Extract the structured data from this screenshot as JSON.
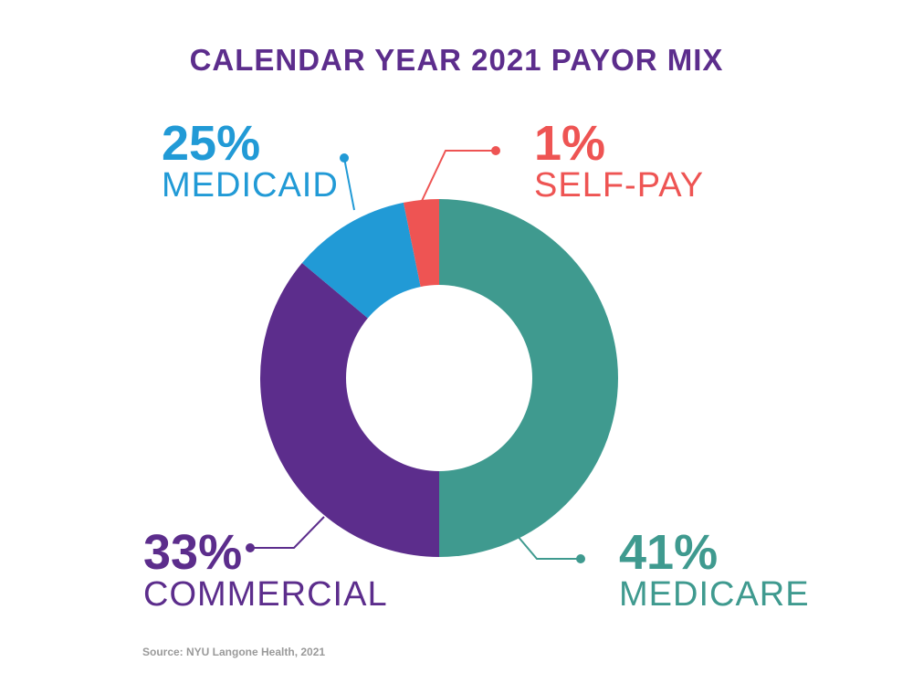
{
  "colors": {
    "title": "#5c2d8c",
    "medicare": "#3f9a8f",
    "commercial": "#5c2d8c",
    "medicaid": "#219ad6",
    "selfpay": "#ee5453",
    "source": "#9a9a9a"
  },
  "chart_data": {
    "type": "pie",
    "title": "CALENDAR YEAR 2021 PAYOR MIX",
    "style": "donut",
    "slices": [
      {
        "label": "MEDICARE",
        "value": 41,
        "value_label": "41%",
        "color": "#3f9a8f"
      },
      {
        "label": "COMMERCIAL",
        "value": 33,
        "value_label": "33%",
        "color": "#5c2d8c"
      },
      {
        "label": "MEDICAID",
        "value": 25,
        "value_label": "25%",
        "color": "#219ad6"
      },
      {
        "label": "SELF-PAY",
        "value": 1,
        "value_label": "1%",
        "color": "#ee5453"
      }
    ],
    "source": "Source: NYU Langone Health, 2021"
  }
}
